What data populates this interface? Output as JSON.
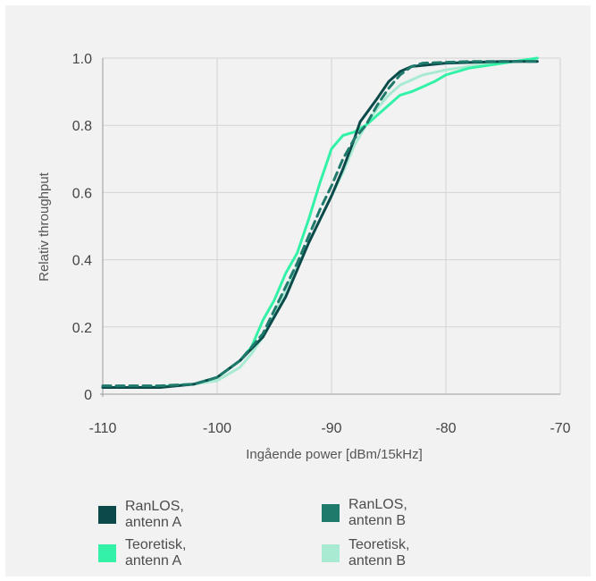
{
  "chart_data": {
    "type": "line",
    "title": "",
    "xlabel": "Ingående power [dBm/15kHz]",
    "ylabel": "Relativ throughput",
    "xlim": [
      -110,
      -70
    ],
    "ylim": [
      0,
      1.0
    ],
    "x_ticks": [
      -110,
      -100,
      -90,
      -80,
      -70
    ],
    "x_tick_labels": [
      "-110",
      "-100",
      "-90",
      "-80",
      "-70"
    ],
    "y_ticks": [
      0,
      0.2,
      0.4,
      0.6,
      0.8,
      1.0
    ],
    "y_tick_labels": [
      "0",
      "0.2",
      "0.4",
      "0.6",
      "0.8",
      "1.0"
    ],
    "grid": true,
    "legend_position": "bottom",
    "series": [
      {
        "name": "RanLOS, antenn A",
        "color": "#0b4a4a",
        "dash": "solid",
        "points": [
          [
            -110,
            0.02
          ],
          [
            -105,
            0.02
          ],
          [
            -102,
            0.03
          ],
          [
            -100,
            0.05
          ],
          [
            -98,
            0.1
          ],
          [
            -96,
            0.17
          ],
          [
            -95,
            0.23
          ],
          [
            -94,
            0.29
          ],
          [
            -93,
            0.37
          ],
          [
            -92,
            0.45
          ],
          [
            -91,
            0.52
          ],
          [
            -90,
            0.59
          ],
          [
            -89,
            0.67
          ],
          [
            -88,
            0.76
          ],
          [
            -87.5,
            0.81
          ],
          [
            -86,
            0.88
          ],
          [
            -85,
            0.93
          ],
          [
            -84,
            0.96
          ],
          [
            -83,
            0.975
          ],
          [
            -80,
            0.985
          ],
          [
            -75,
            0.99
          ],
          [
            -72,
            0.99
          ]
        ]
      },
      {
        "name": "RanLOS, antenn B",
        "color": "#1f7a6c",
        "dash": "dashed",
        "points": [
          [
            -110,
            0.025
          ],
          [
            -105,
            0.025
          ],
          [
            -102,
            0.03
          ],
          [
            -100,
            0.05
          ],
          [
            -98,
            0.1
          ],
          [
            -96,
            0.18
          ],
          [
            -95,
            0.25
          ],
          [
            -94,
            0.32
          ],
          [
            -93,
            0.39
          ],
          [
            -92,
            0.47
          ],
          [
            -91,
            0.55
          ],
          [
            -90,
            0.62
          ],
          [
            -89,
            0.7
          ],
          [
            -88,
            0.76
          ],
          [
            -87,
            0.8
          ],
          [
            -86,
            0.86
          ],
          [
            -85,
            0.91
          ],
          [
            -84,
            0.95
          ],
          [
            -83,
            0.975
          ],
          [
            -82,
            0.985
          ],
          [
            -78,
            0.99
          ],
          [
            -72,
            0.99
          ]
        ]
      },
      {
        "name": "Teoretisk, antenn A",
        "color": "#33f2a8",
        "dash": "solid",
        "points": [
          [
            -110,
            0.02
          ],
          [
            -106,
            0.02
          ],
          [
            -102,
            0.03
          ],
          [
            -100,
            0.05
          ],
          [
            -98,
            0.1
          ],
          [
            -97,
            0.14
          ],
          [
            -96,
            0.22
          ],
          [
            -95,
            0.28
          ],
          [
            -94,
            0.36
          ],
          [
            -93,
            0.42
          ],
          [
            -92,
            0.52
          ],
          [
            -91,
            0.63
          ],
          [
            -90,
            0.73
          ],
          [
            -89,
            0.77
          ],
          [
            -88,
            0.78
          ],
          [
            -87,
            0.8
          ],
          [
            -86,
            0.83
          ],
          [
            -85,
            0.86
          ],
          [
            -84,
            0.89
          ],
          [
            -83,
            0.9
          ],
          [
            -82,
            0.915
          ],
          [
            -81,
            0.93
          ],
          [
            -80,
            0.95
          ],
          [
            -78,
            0.97
          ],
          [
            -75,
            0.985
          ],
          [
            -72,
            1.0
          ]
        ]
      },
      {
        "name": "Teoretisk, antenn B",
        "color": "#a9ead2",
        "dash": "solid",
        "points": [
          [
            -110,
            0.02
          ],
          [
            -106,
            0.02
          ],
          [
            -102,
            0.03
          ],
          [
            -100,
            0.04
          ],
          [
            -98,
            0.08
          ],
          [
            -97,
            0.12
          ],
          [
            -96,
            0.17
          ],
          [
            -95,
            0.24
          ],
          [
            -94,
            0.31
          ],
          [
            -93,
            0.38
          ],
          [
            -92,
            0.45
          ],
          [
            -91,
            0.52
          ],
          [
            -90,
            0.59
          ],
          [
            -89,
            0.66
          ],
          [
            -88,
            0.74
          ],
          [
            -87,
            0.8
          ],
          [
            -86,
            0.85
          ],
          [
            -85,
            0.89
          ],
          [
            -84,
            0.92
          ],
          [
            -82,
            0.95
          ],
          [
            -80,
            0.965
          ],
          [
            -77,
            0.98
          ],
          [
            -74,
            0.99
          ],
          [
            -72,
            1.0
          ]
        ]
      }
    ]
  }
}
